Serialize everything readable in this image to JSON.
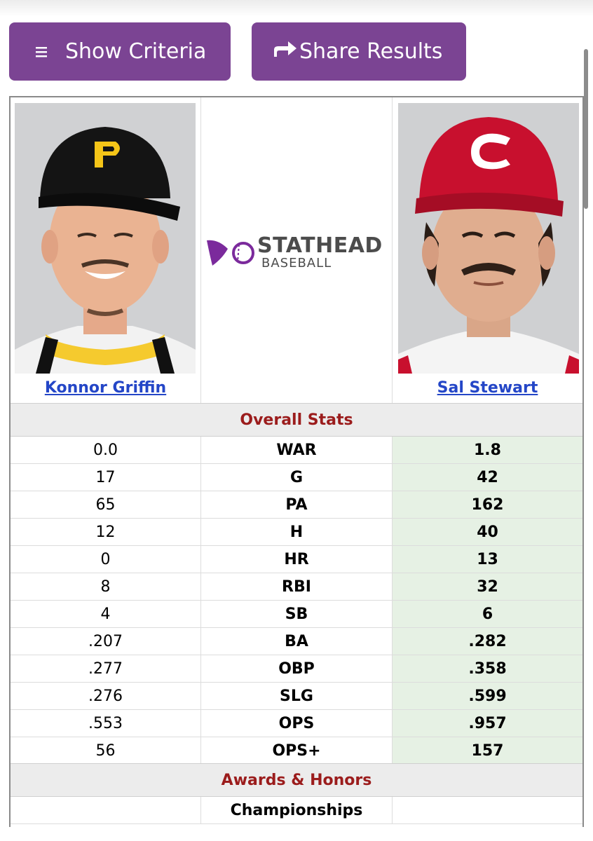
{
  "toolbar": {
    "show_criteria_label": "Show Criteria",
    "share_results_label": "Share Results",
    "brand_color": "#7b4493"
  },
  "players": {
    "left": {
      "name": "Konnor Griffin",
      "team_color": "#111111",
      "cap_letter": "P"
    },
    "right": {
      "name": "Sal Stewart",
      "team_color": "#c8102e",
      "cap_letter": "C"
    }
  },
  "logo": {
    "brand": "STATHEAD",
    "sub": "BASEBALL"
  },
  "sections": {
    "overall": "Overall Stats",
    "awards": "Awards & Honors"
  },
  "stats": [
    {
      "stat": "WAR",
      "left": "0.0",
      "right": "1.8"
    },
    {
      "stat": "G",
      "left": "17",
      "right": "42"
    },
    {
      "stat": "PA",
      "left": "65",
      "right": "162"
    },
    {
      "stat": "H",
      "left": "12",
      "right": "40"
    },
    {
      "stat": "HR",
      "left": "0",
      "right": "13"
    },
    {
      "stat": "RBI",
      "left": "8",
      "right": "32"
    },
    {
      "stat": "SB",
      "left": "4",
      "right": "6"
    },
    {
      "stat": "BA",
      "left": ".207",
      "right": ".282"
    },
    {
      "stat": "OBP",
      "left": ".277",
      "right": ".358"
    },
    {
      "stat": "SLG",
      "left": ".276",
      "right": ".599"
    },
    {
      "stat": "OPS",
      "left": ".553",
      "right": ".957"
    },
    {
      "stat": "OPS+",
      "left": "56",
      "right": "157"
    }
  ],
  "awards": [
    {
      "stat": "Championships",
      "left": "",
      "right": ""
    }
  ],
  "highlight_color": "#e6f1e4"
}
